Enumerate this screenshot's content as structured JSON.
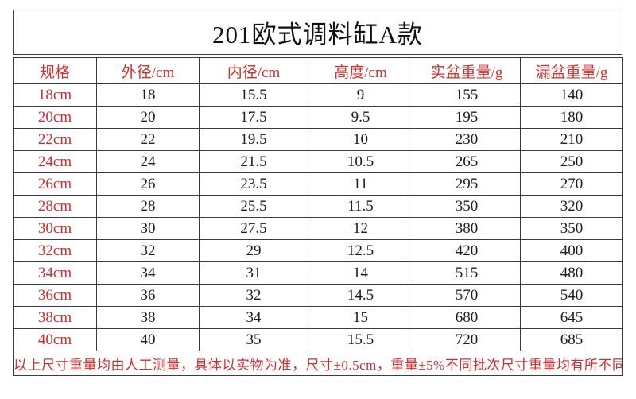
{
  "title": "201欧式调料缸A款",
  "table": {
    "headers": [
      "规格",
      "外径/cm",
      "内径/cm",
      "高度/cm",
      "实盆重量/g",
      "漏盆重量/g"
    ],
    "rows": [
      [
        "18cm",
        "18",
        "15.5",
        "9",
        "155",
        "140"
      ],
      [
        "20cm",
        "20",
        "17.5",
        "9.5",
        "195",
        "180"
      ],
      [
        "22cm",
        "22",
        "19.5",
        "10",
        "230",
        "210"
      ],
      [
        "24cm",
        "24",
        "21.5",
        "10.5",
        "265",
        "250"
      ],
      [
        "26cm",
        "26",
        "23.5",
        "11",
        "295",
        "270"
      ],
      [
        "28cm",
        "28",
        "25.5",
        "11.5",
        "350",
        "320"
      ],
      [
        "30cm",
        "30",
        "27.5",
        "12",
        "380",
        "350"
      ],
      [
        "32cm",
        "32",
        "29",
        "12.5",
        "420",
        "400"
      ],
      [
        "34cm",
        "34",
        "31",
        "14",
        "515",
        "480"
      ],
      [
        "36cm",
        "36",
        "32",
        "14.5",
        "570",
        "540"
      ],
      [
        "38cm",
        "38",
        "34",
        "15",
        "680",
        "645"
      ],
      [
        "40cm",
        "40",
        "35",
        "15.5",
        "720",
        "685"
      ]
    ],
    "footnote": "以上尺寸重量均由人工测量，具体以实物为准，尺寸±0.5cm，重量±5%不同批次尺寸重量均有所不同"
  },
  "colors": {
    "accent_red": "#cc2f2f",
    "border": "#3b3b3b",
    "text": "#1c1c1c",
    "background": "#ffffff"
  }
}
